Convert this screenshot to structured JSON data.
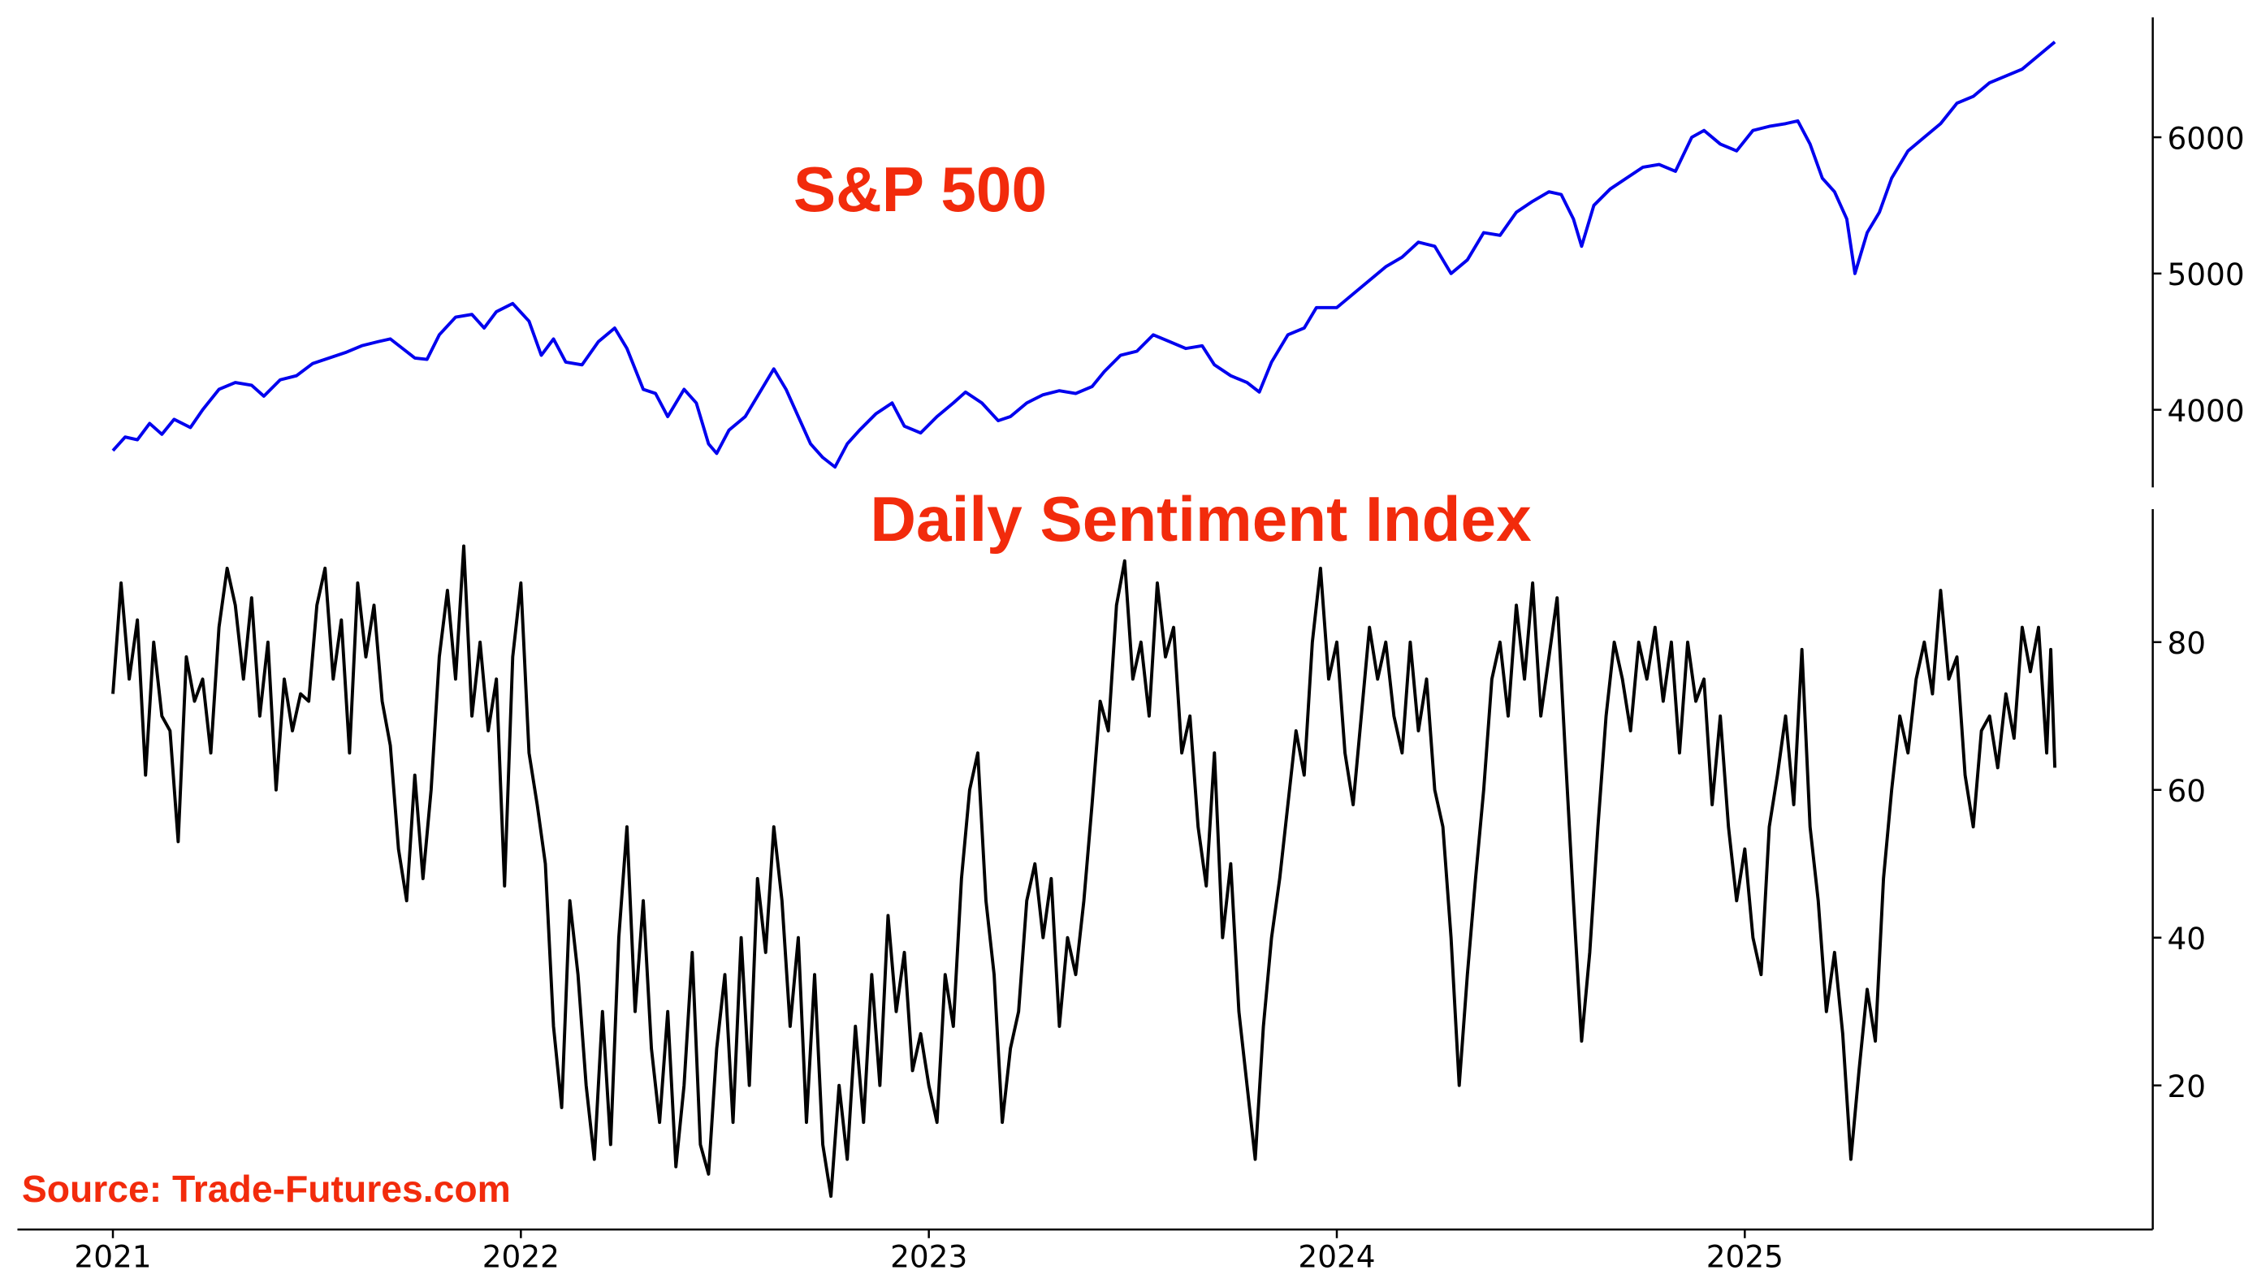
{
  "chart_data": [
    {
      "type": "line",
      "title": "S&P 500",
      "color": "#0000ee",
      "x": [
        2021.0,
        2021.03,
        2021.06,
        2021.09,
        2021.12,
        2021.15,
        2021.19,
        2021.22,
        2021.26,
        2021.3,
        2021.34,
        2021.37,
        2021.41,
        2021.45,
        2021.49,
        2021.53,
        2021.57,
        2021.61,
        2021.65,
        2021.68,
        2021.71,
        2021.74,
        2021.77,
        2021.8,
        2021.84,
        2021.88,
        2021.91,
        2021.94,
        2021.98,
        2022.02,
        2022.05,
        2022.08,
        2022.11,
        2022.15,
        2022.19,
        2022.23,
        2022.26,
        2022.3,
        2022.33,
        2022.36,
        2022.4,
        2022.43,
        2022.46,
        2022.48,
        2022.51,
        2022.55,
        2022.59,
        2022.62,
        2022.65,
        2022.68,
        2022.71,
        2022.74,
        2022.77,
        2022.8,
        2022.83,
        2022.87,
        2022.91,
        2022.94,
        2022.98,
        2023.02,
        2023.06,
        2023.09,
        2023.13,
        2023.17,
        2023.2,
        2023.24,
        2023.28,
        2023.32,
        2023.36,
        2023.4,
        2023.43,
        2023.47,
        2023.51,
        2023.55,
        2023.59,
        2023.63,
        2023.67,
        2023.7,
        2023.74,
        2023.78,
        2023.81,
        2023.84,
        2023.88,
        2023.92,
        2023.95,
        2024.0,
        2024.04,
        2024.08,
        2024.12,
        2024.16,
        2024.2,
        2024.24,
        2024.28,
        2024.32,
        2024.36,
        2024.4,
        2024.44,
        2024.48,
        2024.52,
        2024.55,
        2024.58,
        2024.6,
        2024.63,
        2024.67,
        2024.71,
        2024.75,
        2024.79,
        2024.83,
        2024.87,
        2024.9,
        2024.94,
        2024.98,
        2025.02,
        2025.06,
        2025.1,
        2025.13,
        2025.16,
        2025.19,
        2025.22,
        2025.25,
        2025.27,
        2025.3,
        2025.33,
        2025.36,
        2025.4,
        2025.44,
        2025.48,
        2025.52,
        2025.56,
        2025.6,
        2025.64,
        2025.68,
        2025.72,
        2025.76
      ],
      "values": [
        3700,
        3800,
        3780,
        3900,
        3820,
        3930,
        3870,
        4000,
        4150,
        4200,
        4180,
        4100,
        4220,
        4250,
        4340,
        4380,
        4420,
        4470,
        4500,
        4520,
        4450,
        4380,
        4370,
        4550,
        4680,
        4700,
        4600,
        4720,
        4780,
        4650,
        4400,
        4520,
        4350,
        4330,
        4500,
        4600,
        4450,
        4150,
        4120,
        3950,
        4150,
        4050,
        3750,
        3680,
        3850,
        3950,
        4150,
        4300,
        4150,
        3950,
        3750,
        3650,
        3580,
        3750,
        3850,
        3970,
        4050,
        3880,
        3830,
        3950,
        4050,
        4130,
        4050,
        3920,
        3950,
        4050,
        4110,
        4140,
        4120,
        4170,
        4280,
        4400,
        4430,
        4550,
        4500,
        4450,
        4470,
        4330,
        4250,
        4200,
        4130,
        4350,
        4550,
        4600,
        4750,
        4750,
        4850,
        4950,
        5050,
        5120,
        5230,
        5200,
        5000,
        5100,
        5300,
        5280,
        5450,
        5530,
        5600,
        5580,
        5400,
        5200,
        5500,
        5620,
        5700,
        5780,
        5800,
        5750,
        6000,
        6050,
        5950,
        5900,
        6050,
        6080,
        6100,
        6120,
        5950,
        5700,
        5600,
        5400,
        5000,
        5300,
        5450,
        5700,
        5900,
        6000,
        6100,
        6250,
        6300,
        6400,
        6450,
        6500,
        6600,
        6700
      ],
      "xlim": [
        2020.766,
        2026.0
      ],
      "ylim": [
        3430,
        6880
      ],
      "yticks": [
        4000,
        5000,
        6000
      ]
    },
    {
      "type": "line",
      "title": "Daily Sentiment Index",
      "color": "#000000",
      "annotation": "Source: Trade-Futures.com",
      "x": [
        2021.0,
        2021.02,
        2021.04,
        2021.06,
        2021.08,
        2021.1,
        2021.12,
        2021.14,
        2021.16,
        2021.18,
        2021.2,
        2021.22,
        2021.24,
        2021.26,
        2021.28,
        2021.3,
        2021.32,
        2021.34,
        2021.36,
        2021.38,
        2021.4,
        2021.42,
        2021.44,
        2021.46,
        2021.48,
        2021.5,
        2021.52,
        2021.54,
        2021.56,
        2021.58,
        2021.6,
        2021.62,
        2021.64,
        2021.66,
        2021.68,
        2021.7,
        2021.72,
        2021.74,
        2021.76,
        2021.78,
        2021.8,
        2021.82,
        2021.84,
        2021.86,
        2021.88,
        2021.9,
        2021.92,
        2021.94,
        2021.96,
        2021.98,
        2022.0,
        2022.02,
        2022.04,
        2022.06,
        2022.08,
        2022.1,
        2022.12,
        2022.14,
        2022.16,
        2022.18,
        2022.2,
        2022.22,
        2022.24,
        2022.26,
        2022.28,
        2022.3,
        2022.32,
        2022.34,
        2022.36,
        2022.38,
        2022.4,
        2022.42,
        2022.44,
        2022.46,
        2022.48,
        2022.5,
        2022.52,
        2022.54,
        2022.56,
        2022.58,
        2022.6,
        2022.62,
        2022.64,
        2022.66,
        2022.68,
        2022.7,
        2022.72,
        2022.74,
        2022.76,
        2022.78,
        2022.8,
        2022.82,
        2022.84,
        2022.86,
        2022.88,
        2022.9,
        2022.92,
        2022.94,
        2022.96,
        2022.98,
        2023.0,
        2023.02,
        2023.04,
        2023.06,
        2023.08,
        2023.1,
        2023.12,
        2023.14,
        2023.16,
        2023.18,
        2023.2,
        2023.22,
        2023.24,
        2023.26,
        2023.28,
        2023.3,
        2023.32,
        2023.34,
        2023.36,
        2023.38,
        2023.4,
        2023.42,
        2023.44,
        2023.46,
        2023.48,
        2023.5,
        2023.52,
        2023.54,
        2023.56,
        2023.58,
        2023.6,
        2023.62,
        2023.64,
        2023.66,
        2023.68,
        2023.7,
        2023.72,
        2023.74,
        2023.76,
        2023.78,
        2023.8,
        2023.82,
        2023.84,
        2023.86,
        2023.88,
        2023.9,
        2023.92,
        2023.94,
        2023.96,
        2023.98,
        2024.0,
        2024.02,
        2024.04,
        2024.06,
        2024.08,
        2024.1,
        2024.12,
        2024.14,
        2024.16,
        2024.18,
        2024.2,
        2024.22,
        2024.24,
        2024.26,
        2024.28,
        2024.3,
        2024.32,
        2024.34,
        2024.36,
        2024.38,
        2024.4,
        2024.42,
        2024.44,
        2024.46,
        2024.48,
        2024.5,
        2024.52,
        2024.54,
        2024.56,
        2024.58,
        2024.6,
        2024.62,
        2024.64,
        2024.66,
        2024.68,
        2024.7,
        2024.72,
        2024.74,
        2024.76,
        2024.78,
        2024.8,
        2024.82,
        2024.84,
        2024.86,
        2024.88,
        2024.9,
        2024.92,
        2024.94,
        2024.96,
        2024.98,
        2025.0,
        2025.02,
        2025.04,
        2025.06,
        2025.08,
        2025.1,
        2025.12,
        2025.14,
        2025.16,
        2025.18,
        2025.2,
        2025.22,
        2025.24,
        2025.26,
        2025.28,
        2025.3,
        2025.32,
        2025.34,
        2025.36,
        2025.38,
        2025.4,
        2025.42,
        2025.44,
        2025.46,
        2025.48,
        2025.5,
        2025.52,
        2025.54,
        2025.56,
        2025.58,
        2025.6,
        2025.62,
        2025.64,
        2025.66,
        2025.68,
        2025.7,
        2025.72,
        2025.74,
        2025.75,
        2025.76
      ],
      "values": [
        73,
        88,
        75,
        83,
        62,
        80,
        70,
        68,
        53,
        78,
        72,
        75,
        65,
        82,
        90,
        85,
        75,
        86,
        70,
        80,
        60,
        75,
        68,
        73,
        72,
        85,
        90,
        75,
        83,
        65,
        88,
        78,
        85,
        72,
        66,
        52,
        45,
        62,
        48,
        60,
        78,
        87,
        75,
        93,
        70,
        80,
        68,
        75,
        47,
        78,
        88,
        65,
        58,
        50,
        28,
        17,
        45,
        35,
        20,
        10,
        30,
        12,
        40,
        55,
        30,
        45,
        25,
        15,
        30,
        9,
        20,
        38,
        12,
        8,
        25,
        35,
        15,
        40,
        20,
        48,
        38,
        55,
        45,
        28,
        40,
        15,
        35,
        12,
        5,
        20,
        10,
        28,
        15,
        35,
        20,
        43,
        30,
        38,
        22,
        27,
        20,
        15,
        35,
        28,
        48,
        60,
        65,
        45,
        35,
        15,
        25,
        30,
        45,
        50,
        40,
        48,
        28,
        40,
        35,
        45,
        58,
        72,
        68,
        85,
        91,
        75,
        80,
        70,
        88,
        78,
        82,
        65,
        70,
        55,
        47,
        65,
        40,
        50,
        30,
        20,
        10,
        28,
        40,
        48,
        58,
        68,
        62,
        80,
        90,
        75,
        80,
        65,
        58,
        70,
        82,
        75,
        80,
        70,
        65,
        80,
        68,
        75,
        60,
        55,
        40,
        20,
        35,
        48,
        60,
        75,
        80,
        70,
        85,
        75,
        88,
        70,
        78,
        86,
        65,
        45,
        26,
        38,
        55,
        70,
        80,
        75,
        68,
        80,
        75,
        82,
        72,
        80,
        65,
        80,
        72,
        75,
        58,
        70,
        55,
        45,
        52,
        40,
        35,
        55,
        62,
        70,
        58,
        79,
        55,
        45,
        30,
        38,
        27,
        10,
        22,
        33,
        26,
        48,
        60,
        70,
        65,
        75,
        80,
        73,
        87,
        75,
        78,
        62,
        55,
        68,
        70,
        63,
        73,
        67,
        82,
        76,
        82,
        65,
        79,
        63
      ],
      "xlim": [
        2020.766,
        2026.0
      ],
      "ylim": [
        0.5,
        98
      ],
      "yticks": [
        20,
        40,
        60,
        80
      ],
      "xticks": [
        2021,
        2022,
        2023,
        2024,
        2025
      ]
    }
  ]
}
